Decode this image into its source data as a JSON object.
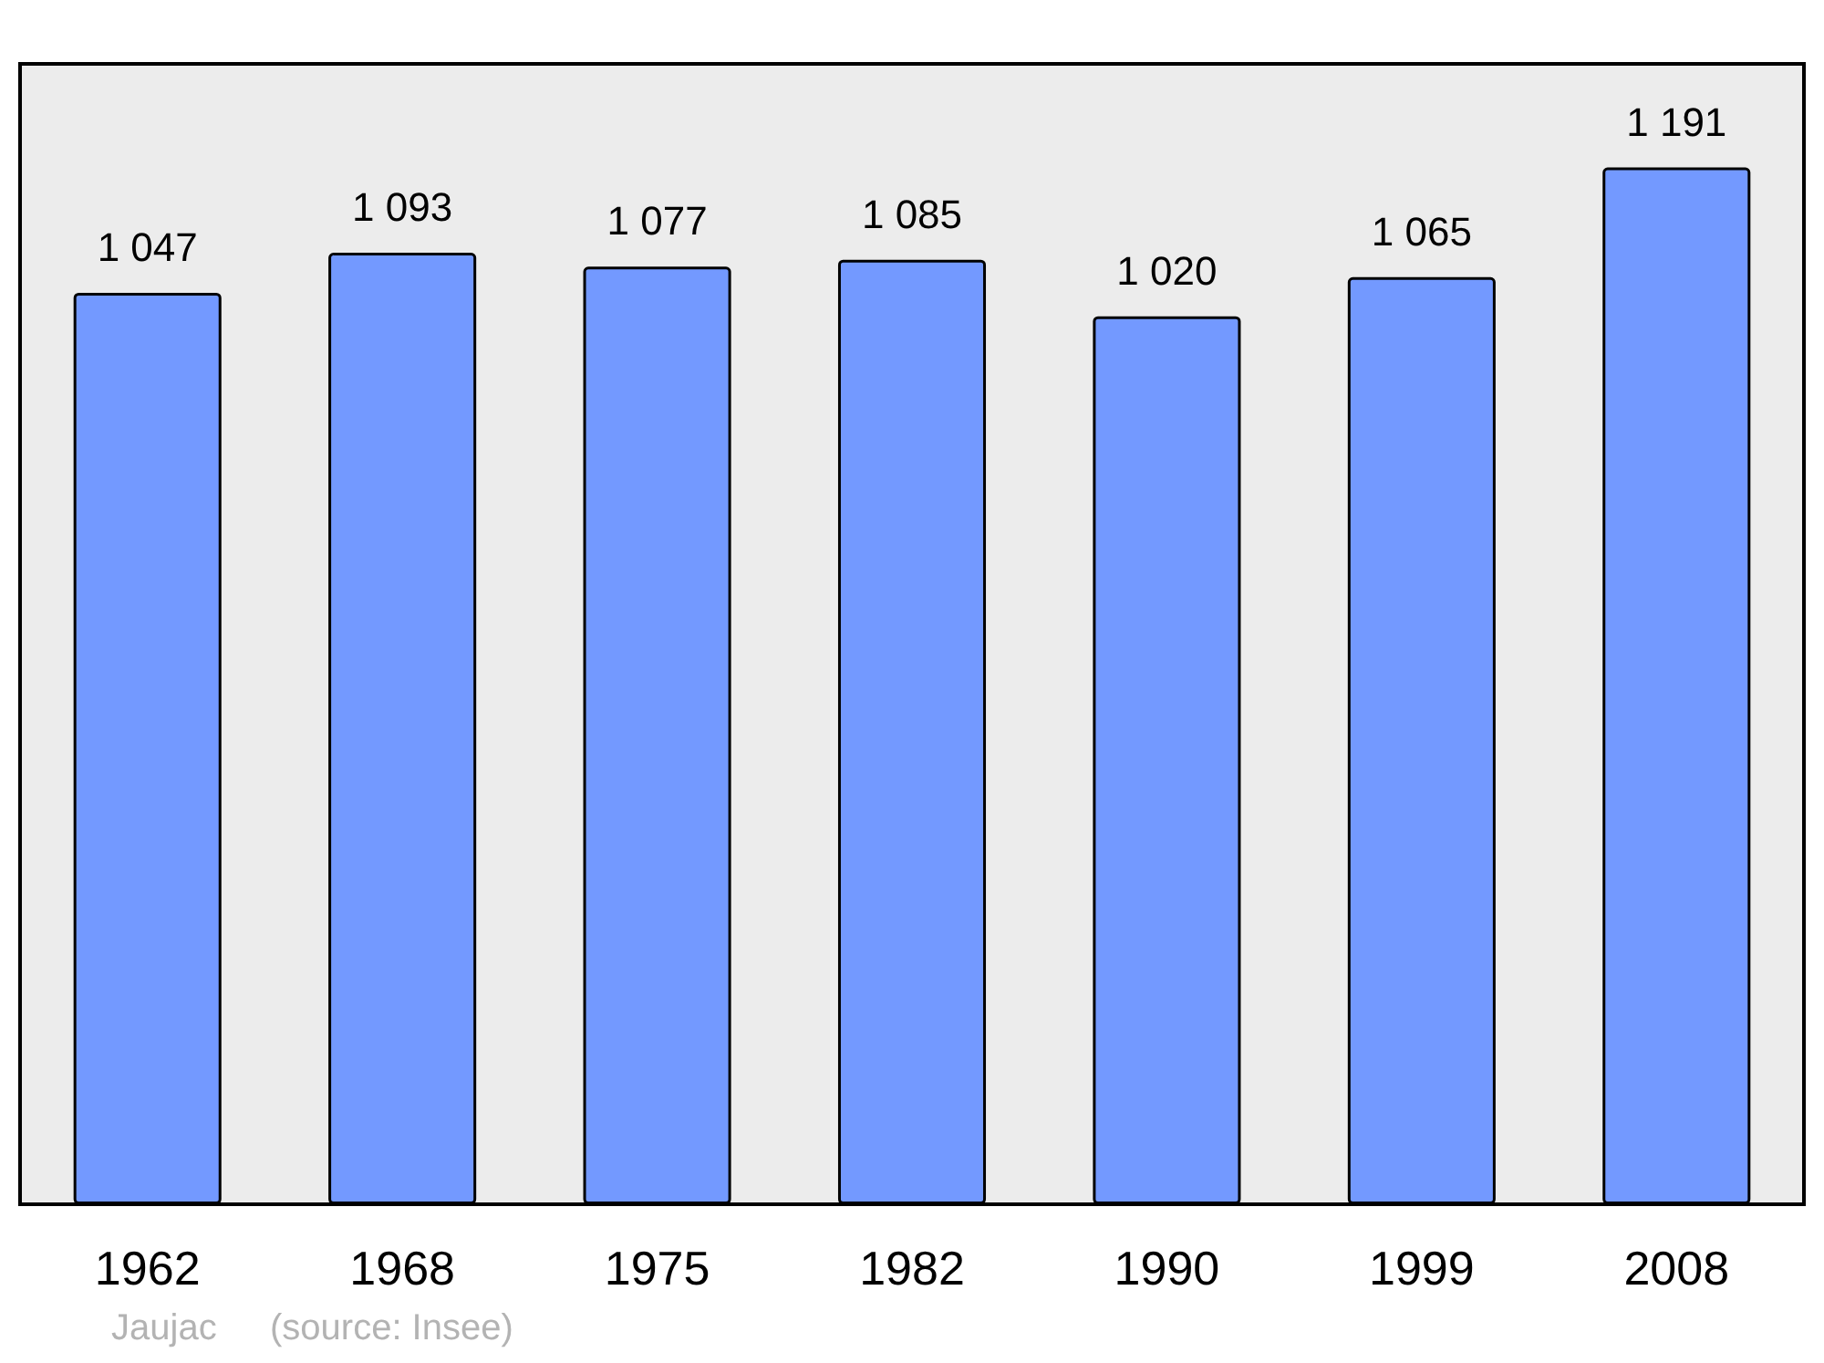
{
  "chart_data": {
    "type": "bar",
    "categories": [
      "1962",
      "1968",
      "1975",
      "1982",
      "1990",
      "1999",
      "2008"
    ],
    "values": [
      1047,
      1093,
      1077,
      1085,
      1020,
      1065,
      1191
    ],
    "value_labels": [
      "1 047",
      "1 093",
      "1 077",
      "1 085",
      "1 020",
      "1 065",
      "1 191"
    ],
    "color": "#7399ff",
    "ylim": [
      0,
      1310
    ],
    "tick_labels": "x",
    "grid": false,
    "annotations": [
      "Jaujac",
      "(source: Insee)"
    ]
  }
}
